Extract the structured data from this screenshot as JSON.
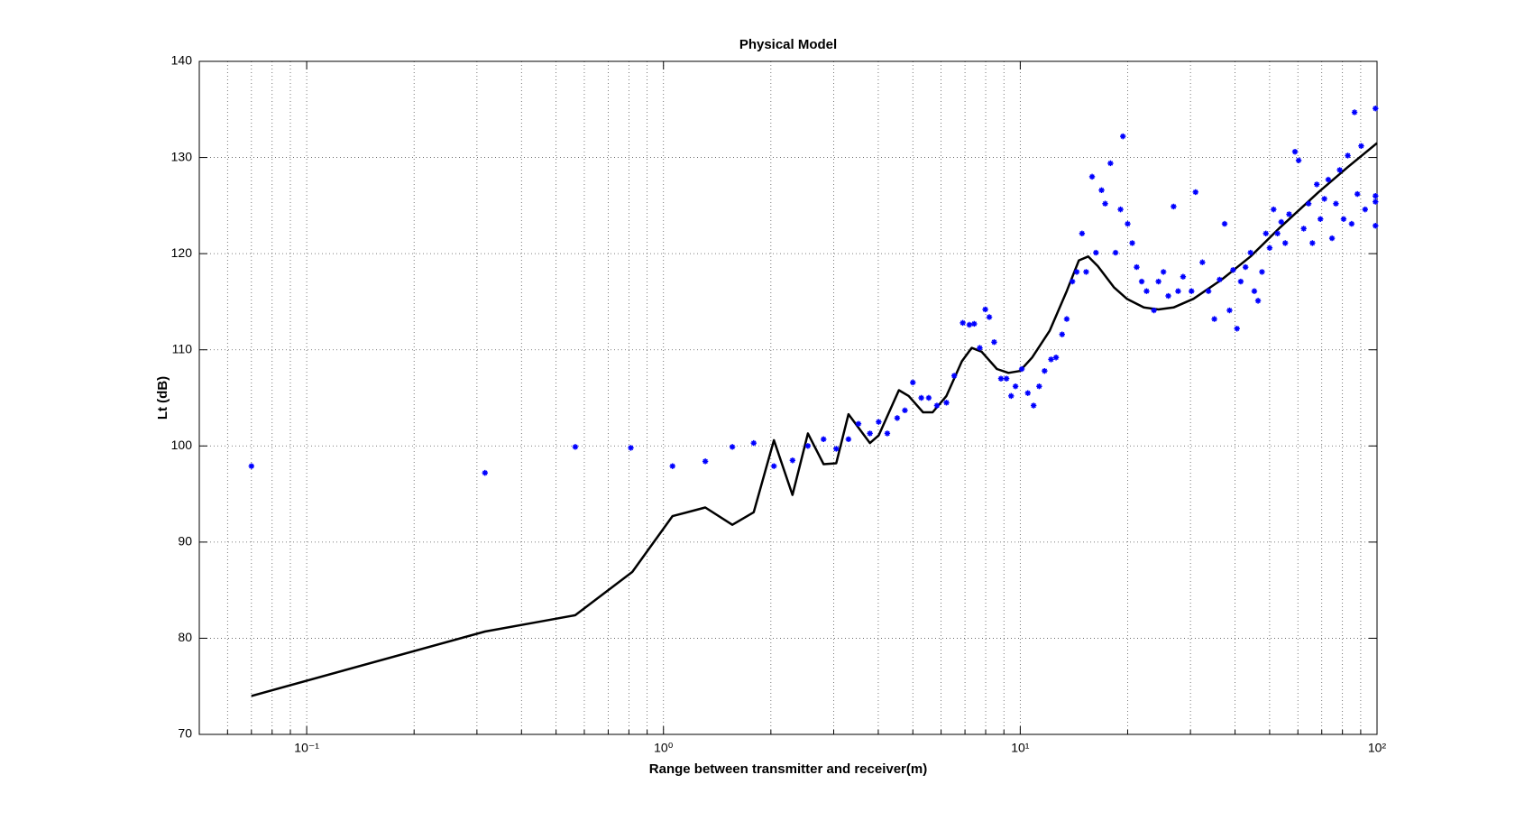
{
  "chart_data": {
    "type": "line_scatter",
    "title": "Physical Model",
    "x_label": "Range between transmitter and receiver(m)",
    "y_label": "Lt (dB)",
    "xscale": "log",
    "xlim": [
      0.05,
      100
    ],
    "ylim": [
      70,
      140
    ],
    "xticks": [
      {
        "value": 0.1,
        "label": "10⁻¹"
      },
      {
        "value": 1,
        "label": "10⁰"
      },
      {
        "value": 10,
        "label": "10¹"
      },
      {
        "value": 100,
        "label": "10²"
      }
    ],
    "yticks": [
      70,
      80,
      90,
      100,
      110,
      120,
      130,
      140
    ],
    "grid": true,
    "minor_grid": true,
    "series": [
      {
        "kind": "line",
        "color": "#000000",
        "x": [
          0.07,
          0.316,
          0.446,
          0.566,
          0.818,
          1.06,
          1.31,
          1.56,
          1.79,
          2.04,
          2.3,
          2.54,
          2.81,
          3.05,
          3.3,
          3.79,
          4.01,
          4.57,
          4.87,
          5.34,
          5.68,
          6.21,
          6.86,
          7.31,
          7.79,
          8.6,
          9.27,
          9.98,
          10.8,
          12.1,
          13.5,
          14.6,
          15.5,
          16.5,
          18.3,
          19.9,
          22.2,
          24.4,
          26.9,
          30.6,
          36.7,
          44.2,
          53.4,
          68.6,
          82.8,
          100
        ],
        "values": [
          74,
          80.7,
          81.7,
          82.4,
          86.9,
          92.7,
          93.6,
          91.8,
          93.1,
          100.6,
          94.9,
          101.3,
          98.1,
          98.2,
          103.3,
          100.3,
          101.1,
          105.8,
          105.2,
          103.5,
          103.5,
          105.2,
          108.8,
          110.2,
          109.8,
          108,
          107.6,
          107.8,
          109.2,
          112,
          116.1,
          119.3,
          119.7,
          118.7,
          116.5,
          115.3,
          114.4,
          114.2,
          114.4,
          115.3,
          117.3,
          119.7,
          122.7,
          126.4,
          129,
          131.5
        ]
      },
      {
        "kind": "scatter",
        "color": "#0000ff",
        "x": [
          0.07,
          0.316,
          0.566,
          0.81,
          1.06,
          1.31,
          1.56,
          1.79,
          2.04,
          2.3,
          2.54,
          2.81,
          3.05,
          3.3,
          3.52,
          3.79,
          4.01,
          4.24,
          4.52,
          4.75,
          5.0,
          5.28,
          5.54,
          5.84,
          6.21,
          6.53,
          6.9,
          7.2,
          7.43,
          7.7,
          7.98,
          8.19,
          8.45,
          8.83,
          9.15,
          9.43,
          9.7,
          10.1,
          10.5,
          10.9,
          11.3,
          11.7,
          12.2,
          12.6,
          13.1,
          13.5,
          14.0,
          14.4,
          14.9,
          15.3,
          15.9,
          16.3,
          16.9,
          17.3,
          17.9,
          18.5,
          19.1,
          19.4,
          20.0,
          20.6,
          21.2,
          21.9,
          22.6,
          23.7,
          24.4,
          25.2,
          26.0,
          26.9,
          27.7,
          28.6,
          30.2,
          31.0,
          32.4,
          33.7,
          35.0,
          36.2,
          37.4,
          38.6,
          39.5,
          40.5,
          41.5,
          42.8,
          44.2,
          45.3,
          46.4,
          47.6,
          48.8,
          50.0,
          51.3,
          52.6,
          53.9,
          55.3,
          56.7,
          58.9,
          60.3,
          62.3,
          64.3,
          65.9,
          67.8,
          69.4,
          71.2,
          73.0,
          74.8,
          76.7,
          78.6,
          80.6,
          82.8,
          84.9,
          86.5,
          88.1,
          90.3,
          92.6,
          99,
          99,
          99,
          99
        ],
        "values": [
          97.9,
          97.2,
          99.9,
          99.8,
          97.9,
          98.4,
          99.9,
          100.3,
          97.9,
          98.5,
          100,
          100.7,
          99.7,
          100.7,
          102.3,
          101.3,
          102.5,
          101.3,
          102.9,
          103.7,
          106.6,
          105,
          105,
          104.2,
          104.5,
          107.3,
          112.8,
          112.6,
          112.7,
          110.2,
          114.2,
          113.4,
          110.8,
          107,
          107,
          105.2,
          106.2,
          108,
          105.5,
          104.2,
          106.2,
          107.8,
          109,
          109.2,
          111.6,
          113.2,
          117.1,
          118.1,
          122.1,
          118.1,
          128,
          120.1,
          126.6,
          125.2,
          129.4,
          120.1,
          124.6,
          132.2,
          123.1,
          121.1,
          118.6,
          117.1,
          116.1,
          114.1,
          117.1,
          118.1,
          115.6,
          124.9,
          116.1,
          117.6,
          116.1,
          126.4,
          119.1,
          116.1,
          113.2,
          117.3,
          123.1,
          114.1,
          118.3,
          112.2,
          117.1,
          118.6,
          120.1,
          116.1,
          115.1,
          118.1,
          122.1,
          120.6,
          124.6,
          122.1,
          123.3,
          121.1,
          124.1,
          130.6,
          129.7,
          122.6,
          125.2,
          121.1,
          127.2,
          123.6,
          125.7,
          127.7,
          121.6,
          125.2,
          128.7,
          123.6,
          130.2,
          123.1,
          134.7,
          126.2,
          131.2,
          124.6,
          135.1,
          122.9,
          125.4,
          126
        ]
      }
    ]
  }
}
